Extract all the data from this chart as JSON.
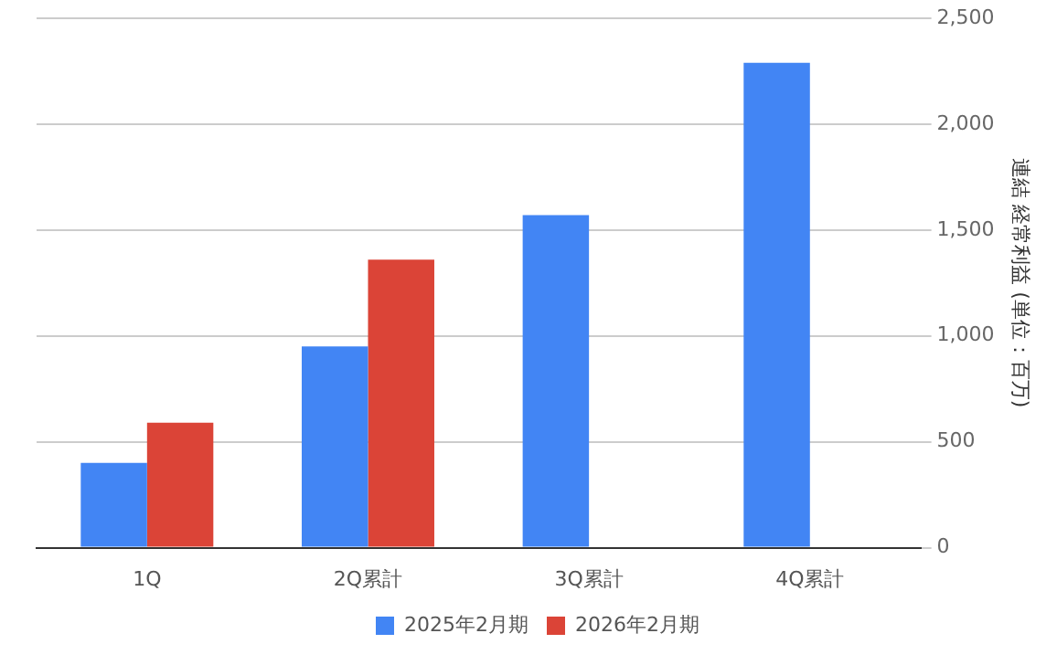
{
  "chart_data": {
    "type": "bar",
    "ylabel": "連結 経常利益 (単位：百万)",
    "categories": [
      "1Q",
      "2Q累計",
      "3Q累計",
      "4Q累計"
    ],
    "series": [
      {
        "name": "2025年2月期",
        "color": "#4285f4",
        "values": [
          400,
          950,
          1570,
          2290
        ]
      },
      {
        "name": "2026年2月期",
        "color": "#db4437",
        "values": [
          590,
          1360,
          null,
          null
        ]
      }
    ],
    "ylim": [
      0,
      2500
    ],
    "yticks": [
      {
        "value": 0,
        "label": "0"
      },
      {
        "value": 500,
        "label": "500"
      },
      {
        "value": 1000,
        "label": "1,000"
      },
      {
        "value": 1500,
        "label": "1,500"
      },
      {
        "value": 2000,
        "label": "2,000"
      },
      {
        "value": 2500,
        "label": "2,500"
      }
    ],
    "grid": "y",
    "legend": "bottom"
  }
}
